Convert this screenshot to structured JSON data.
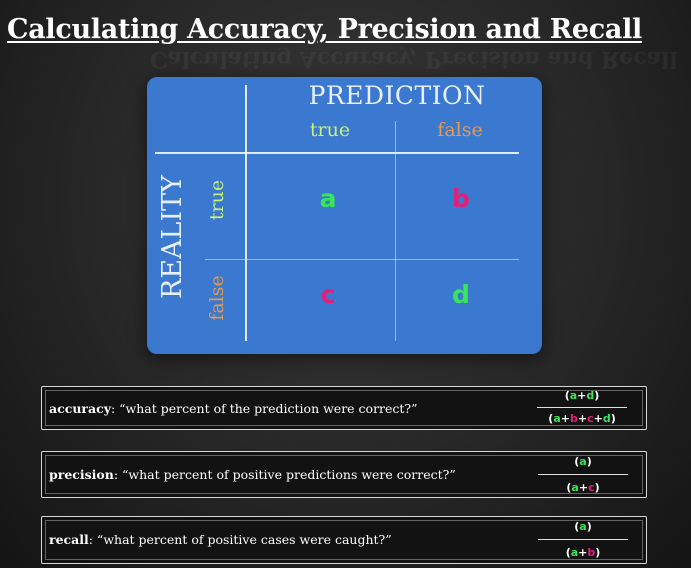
{
  "title": "Calculating Accuracy, Precision and Recall",
  "matrix": {
    "prediction_label": "PREDICTION",
    "reality_label": "REALITY",
    "columns": [
      {
        "label": "true",
        "color": "#c8f078"
      },
      {
        "label": "false",
        "color": "#e69a4a"
      }
    ],
    "rows": [
      {
        "label": "true",
        "color": "#c8f078"
      },
      {
        "label": "false",
        "color": "#e69a4a"
      }
    ],
    "cells": {
      "a": {
        "text": "a",
        "color": "#39e65a"
      },
      "b": {
        "text": "b",
        "color": "#e0207a"
      },
      "c": {
        "text": "c",
        "color": "#e0207a"
      },
      "d": {
        "text": "d",
        "color": "#39e65a"
      }
    },
    "background": "#3b78d0"
  },
  "formulas": [
    {
      "term": "accuracy",
      "description": ": “what percent of the prediction were correct?”",
      "numerator": [
        "(",
        "a",
        "+",
        "d",
        ")"
      ],
      "denominator": [
        "(",
        "a",
        "+",
        "b",
        "+",
        "c",
        "+",
        "d",
        ")"
      ]
    },
    {
      "term": "precision",
      "description": ": “what percent of positive predictions were correct?”",
      "numerator": [
        "(",
        "a",
        ")"
      ],
      "denominator": [
        "(",
        "a",
        "+",
        "c",
        ")"
      ]
    },
    {
      "term": "recall",
      "description": ": “what percent of positive cases were caught?”",
      "numerator": [
        "(",
        "a",
        ")"
      ],
      "denominator": [
        "(",
        "a",
        "+",
        "b",
        ")"
      ]
    }
  ],
  "symbol_colors": {
    "a": "#39e65a",
    "d": "#39e65a",
    "b": "#e0207a",
    "c": "#e0207a"
  }
}
